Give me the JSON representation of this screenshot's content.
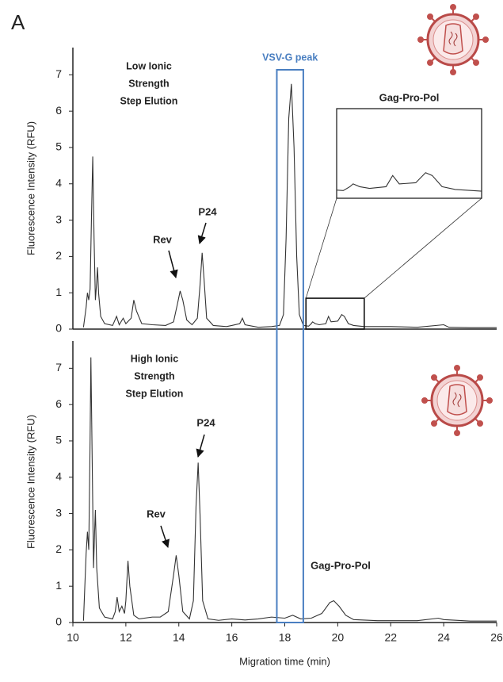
{
  "panel_label": "A",
  "chart_data": [
    {
      "type": "line",
      "ylabel": "Fluorescence Intensity (RFU)",
      "condition": [
        "Low Ionic",
        "Strength",
        "Step Elution"
      ],
      "xlim": [
        10,
        26
      ],
      "ylim": [
        0,
        7.75
      ],
      "yticks": [
        0,
        1,
        2,
        3,
        4,
        5,
        6,
        7
      ],
      "x": [
        10.4,
        10.5,
        10.55,
        10.6,
        10.65,
        10.7,
        10.75,
        10.8,
        10.85,
        10.9,
        10.93,
        10.97,
        11.05,
        11.2,
        11.5,
        11.65,
        11.75,
        11.9,
        12.0,
        12.2,
        12.3,
        12.4,
        12.6,
        13.0,
        13.5,
        13.8,
        13.95,
        14.05,
        14.15,
        14.3,
        14.5,
        14.7,
        14.8,
        14.88,
        14.95,
        15.05,
        15.3,
        15.8,
        16.0,
        16.3,
        16.4,
        16.5,
        17.0,
        17.5,
        17.8,
        17.95,
        18.05,
        18.15,
        18.25,
        18.35,
        18.45,
        18.55,
        18.7,
        18.9,
        19.0,
        19.05,
        19.15,
        19.3,
        19.55,
        19.65,
        19.75,
        20.0,
        20.15,
        20.25,
        20.4,
        20.6,
        21.0,
        22.0,
        23.0,
        24.0,
        24.2,
        25.0,
        26.0
      ],
      "series": [
        {
          "color": "#333333",
          "values": [
            0.05,
            0.6,
            1.0,
            0.8,
            1.1,
            3.0,
            4.75,
            2.5,
            0.8,
            1.3,
            1.7,
            1.0,
            0.35,
            0.15,
            0.1,
            0.35,
            0.12,
            0.3,
            0.15,
            0.3,
            0.8,
            0.5,
            0.15,
            0.12,
            0.1,
            0.2,
            0.7,
            1.05,
            0.8,
            0.25,
            0.12,
            0.3,
            1.2,
            2.1,
            1.4,
            0.3,
            0.1,
            0.07,
            0.1,
            0.15,
            0.3,
            0.12,
            0.05,
            0.07,
            0.1,
            0.4,
            2.5,
            5.8,
            6.75,
            5.0,
            2.0,
            0.4,
            0.1,
            0.08,
            0.15,
            0.2,
            0.15,
            0.12,
            0.15,
            0.35,
            0.2,
            0.22,
            0.4,
            0.35,
            0.15,
            0.1,
            0.07,
            0.07,
            0.05,
            0.12,
            0.05,
            0.04,
            0.04
          ]
        }
      ],
      "annotations": [
        "Rev",
        "P24"
      ],
      "highlight": {
        "label": "VSV-G peak",
        "x": [
          17.7,
          18.7
        ],
        "color": "#4a7fc1"
      },
      "inset": {
        "title": "Gag-Pro-Pol",
        "xlim": [
          18.8,
          21.0
        ],
        "ylim": [
          0,
          0.85
        ]
      }
    },
    {
      "type": "line",
      "ylabel": "Fluorescence Intensity (RFU)",
      "xlabel": "Migration time (min)",
      "condition": [
        "High Ionic",
        "Strength",
        "Step Elution"
      ],
      "xlim": [
        10,
        26
      ],
      "xticks": [
        10,
        12,
        14,
        16,
        18,
        20,
        22,
        24,
        26
      ],
      "ylim": [
        0,
        7.75
      ],
      "yticks": [
        0,
        1,
        2,
        3,
        4,
        5,
        6,
        7
      ],
      "x": [
        10.4,
        10.5,
        10.55,
        10.6,
        10.65,
        10.68,
        10.72,
        10.78,
        10.82,
        10.85,
        10.9,
        11.0,
        11.2,
        11.5,
        11.6,
        11.67,
        11.75,
        11.85,
        11.95,
        12.0,
        12.08,
        12.15,
        12.3,
        12.5,
        13.0,
        13.3,
        13.6,
        13.8,
        13.9,
        14.0,
        14.15,
        14.4,
        14.55,
        14.65,
        14.73,
        14.8,
        14.9,
        15.1,
        15.5,
        16.0,
        16.5,
        17.0,
        17.5,
        18.0,
        18.3,
        18.6,
        19.0,
        19.4,
        19.7,
        19.85,
        20.05,
        20.3,
        20.6,
        21.5,
        23.0,
        23.8,
        24.0,
        25.0,
        26.0
      ],
      "series": [
        {
          "color": "#333333",
          "values": [
            0.05,
            1.9,
            2.5,
            2.0,
            5.0,
            7.3,
            5.0,
            1.5,
            2.5,
            3.1,
            1.5,
            0.4,
            0.15,
            0.1,
            0.3,
            0.7,
            0.3,
            0.45,
            0.25,
            0.6,
            1.7,
            1.0,
            0.2,
            0.1,
            0.15,
            0.15,
            0.3,
            1.3,
            1.85,
            1.3,
            0.3,
            0.1,
            0.6,
            3.2,
            4.4,
            3.0,
            0.6,
            0.1,
            0.06,
            0.1,
            0.07,
            0.1,
            0.15,
            0.12,
            0.2,
            0.1,
            0.12,
            0.25,
            0.55,
            0.6,
            0.45,
            0.2,
            0.08,
            0.05,
            0.05,
            0.12,
            0.08,
            0.04,
            0.04
          ]
        }
      ],
      "annotations": [
        "Rev",
        "P24",
        "Gag-Pro-Pol"
      ]
    }
  ]
}
